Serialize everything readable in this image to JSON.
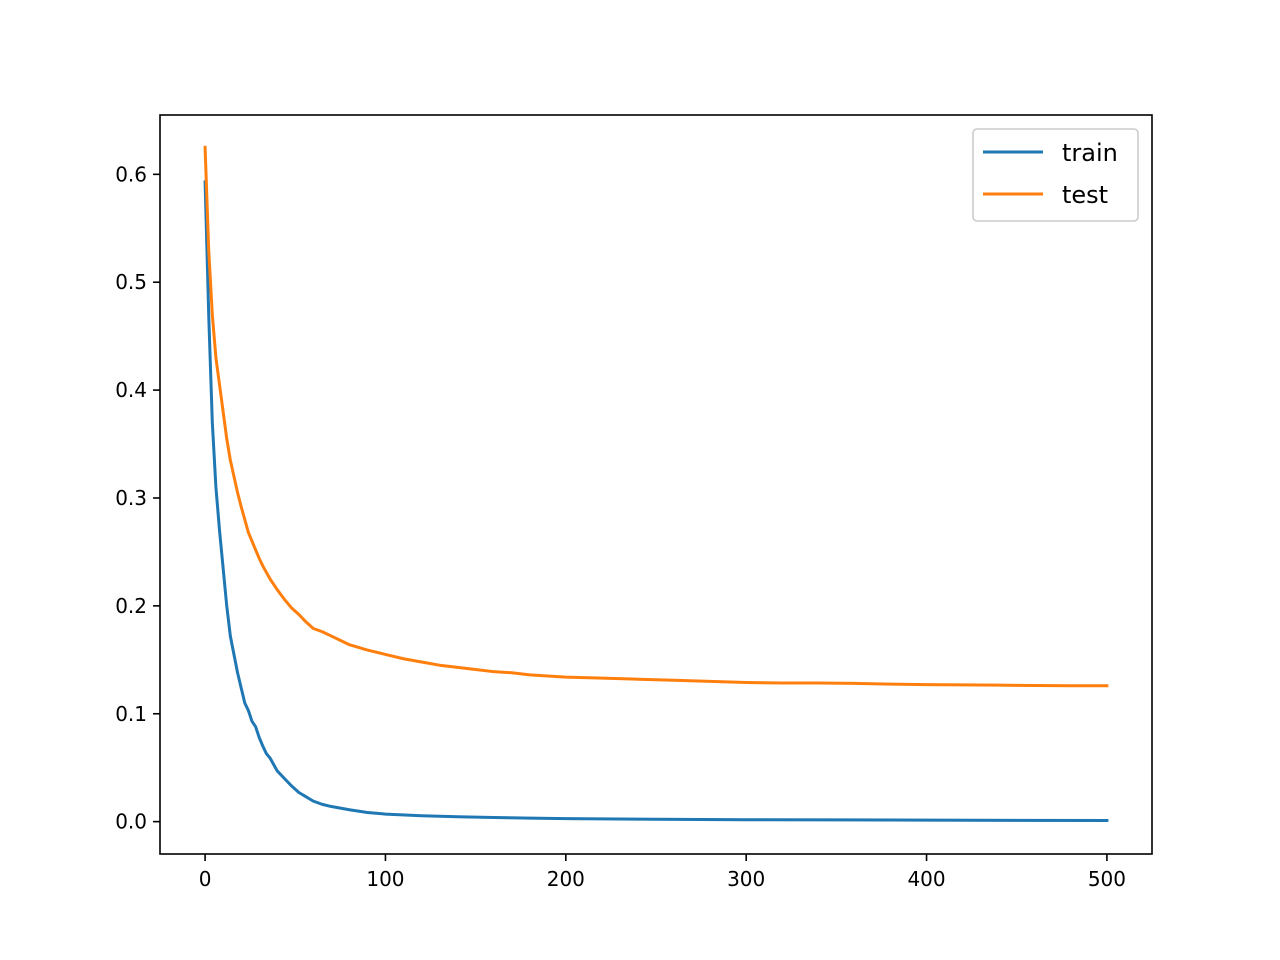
{
  "chart_data": {
    "type": "line",
    "title": "",
    "xlabel": "",
    "ylabel": "",
    "xlim": [
      -25,
      525
    ],
    "ylim": [
      -0.03,
      0.655
    ],
    "xticks": [
      0,
      100,
      200,
      300,
      400,
      500
    ],
    "xtick_labels": [
      "0",
      "100",
      "200",
      "300",
      "400",
      "500"
    ],
    "yticks": [
      0.0,
      0.1,
      0.2,
      0.3,
      0.4,
      0.5,
      0.6
    ],
    "ytick_labels": [
      "0.0",
      "0.1",
      "0.2",
      "0.3",
      "0.4",
      "0.5",
      "0.6"
    ],
    "grid": false,
    "legend_position": "top-right",
    "series": [
      {
        "name": "train",
        "color": "#1f77b4",
        "points": [
          [
            0,
            0.593
          ],
          [
            2,
            0.47
          ],
          [
            4,
            0.37
          ],
          [
            6,
            0.31
          ],
          [
            8,
            0.27
          ],
          [
            10,
            0.235
          ],
          [
            12,
            0.2
          ],
          [
            14,
            0.172
          ],
          [
            16,
            0.155
          ],
          [
            18,
            0.138
          ],
          [
            20,
            0.124
          ],
          [
            22,
            0.11
          ],
          [
            24,
            0.103
          ],
          [
            26,
            0.093
          ],
          [
            28,
            0.088
          ],
          [
            30,
            0.078
          ],
          [
            32,
            0.07
          ],
          [
            34,
            0.063
          ],
          [
            36,
            0.059
          ],
          [
            38,
            0.053
          ],
          [
            40,
            0.047
          ],
          [
            44,
            0.04
          ],
          [
            48,
            0.033
          ],
          [
            52,
            0.027
          ],
          [
            56,
            0.023
          ],
          [
            60,
            0.019
          ],
          [
            65,
            0.016
          ],
          [
            70,
            0.014
          ],
          [
            80,
            0.011
          ],
          [
            90,
            0.0085
          ],
          [
            100,
            0.007
          ],
          [
            120,
            0.0055
          ],
          [
            140,
            0.0045
          ],
          [
            160,
            0.0038
          ],
          [
            180,
            0.0032
          ],
          [
            200,
            0.0028
          ],
          [
            250,
            0.0022
          ],
          [
            300,
            0.0018
          ],
          [
            350,
            0.0016
          ],
          [
            400,
            0.0014
          ],
          [
            450,
            0.0012
          ],
          [
            500,
            0.0011
          ]
        ]
      },
      {
        "name": "test",
        "color": "#ff7f0e",
        "points": [
          [
            0,
            0.625
          ],
          [
            2,
            0.53
          ],
          [
            4,
            0.47
          ],
          [
            6,
            0.43
          ],
          [
            8,
            0.405
          ],
          [
            10,
            0.38
          ],
          [
            12,
            0.355
          ],
          [
            14,
            0.335
          ],
          [
            16,
            0.32
          ],
          [
            18,
            0.305
          ],
          [
            20,
            0.292
          ],
          [
            22,
            0.28
          ],
          [
            24,
            0.268
          ],
          [
            26,
            0.26
          ],
          [
            28,
            0.252
          ],
          [
            30,
            0.244
          ],
          [
            32,
            0.237
          ],
          [
            34,
            0.231
          ],
          [
            36,
            0.225
          ],
          [
            38,
            0.22
          ],
          [
            40,
            0.215
          ],
          [
            44,
            0.206
          ],
          [
            48,
            0.198
          ],
          [
            52,
            0.192
          ],
          [
            56,
            0.185
          ],
          [
            60,
            0.179
          ],
          [
            65,
            0.176
          ],
          [
            70,
            0.172
          ],
          [
            75,
            0.168
          ],
          [
            80,
            0.164
          ],
          [
            90,
            0.159
          ],
          [
            100,
            0.155
          ],
          [
            110,
            0.151
          ],
          [
            120,
            0.148
          ],
          [
            130,
            0.145
          ],
          [
            140,
            0.143
          ],
          [
            150,
            0.141
          ],
          [
            160,
            0.139
          ],
          [
            170,
            0.138
          ],
          [
            180,
            0.136
          ],
          [
            190,
            0.135
          ],
          [
            200,
            0.134
          ],
          [
            220,
            0.133
          ],
          [
            240,
            0.132
          ],
          [
            260,
            0.131
          ],
          [
            280,
            0.13
          ],
          [
            300,
            0.129
          ],
          [
            320,
            0.1285
          ],
          [
            340,
            0.1285
          ],
          [
            360,
            0.1282
          ],
          [
            380,
            0.1275
          ],
          [
            400,
            0.127
          ],
          [
            420,
            0.1268
          ],
          [
            440,
            0.1265
          ],
          [
            460,
            0.1262
          ],
          [
            480,
            0.126
          ],
          [
            500,
            0.126
          ]
        ]
      }
    ]
  }
}
